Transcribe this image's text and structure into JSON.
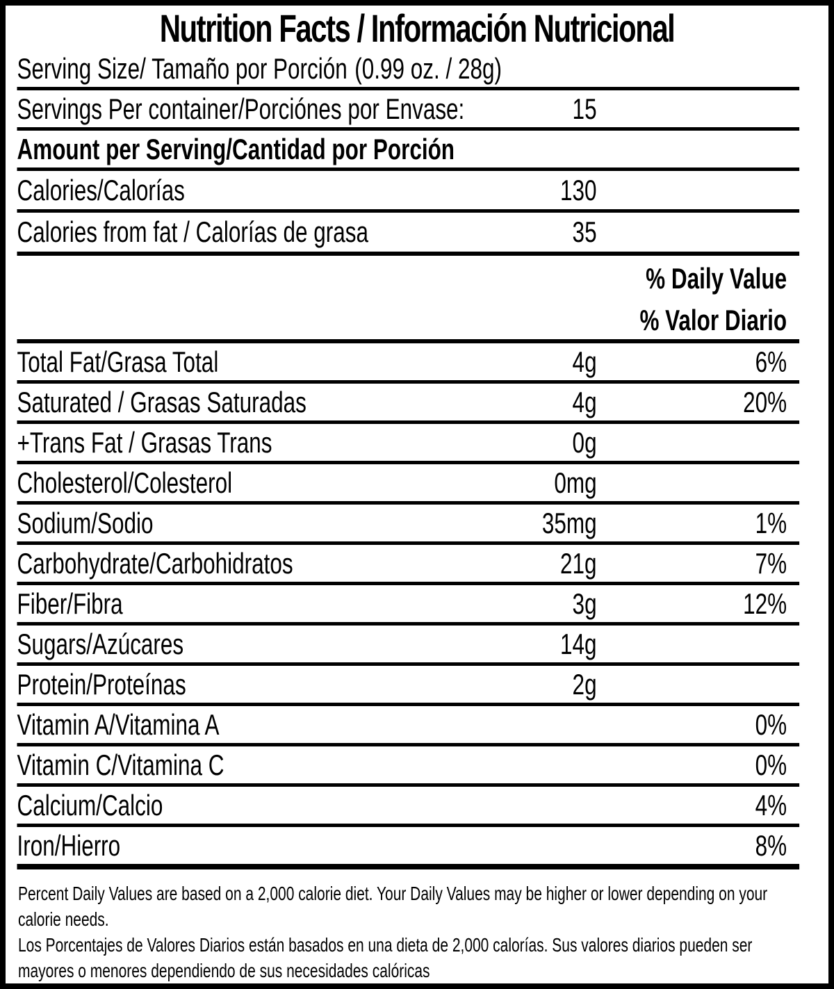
{
  "header": {
    "title": "Nutrition Facts / Información Nutricional"
  },
  "serving": {
    "size": {
      "label": "Serving Size/ Tamaño por Porción",
      "value": "(0.99 oz. / 28g)"
    },
    "per_container": {
      "label": "Servings Per container/Porciónes por Envase:",
      "value": "15"
    }
  },
  "sections": {
    "amount_per_serving": "Amount per Serving/Cantidad por Porción"
  },
  "calories": [
    {
      "label": "Calories/Calorías",
      "value": "130"
    },
    {
      "label": "Calories from fat / Calorías de grasa",
      "value": "35"
    }
  ],
  "daily_value_heading": {
    "en": "% Daily Value",
    "es": "% Valor Diario"
  },
  "nutrients": [
    {
      "label": "Total Fat/Grasa Total",
      "amount": "4g",
      "dv": "6%"
    },
    {
      "label": "Saturated / Grasas Saturadas",
      "amount": "4g",
      "dv": "20%"
    },
    {
      "label": "+Trans Fat / Grasas Trans",
      "amount": "0g",
      "dv": ""
    },
    {
      "label": "Cholesterol/Colesterol",
      "amount": "0mg",
      "dv": ""
    },
    {
      "label": "Sodium/Sodio",
      "amount": "35mg",
      "dv": "1%"
    },
    {
      "label": "Carbohydrate/Carbohidratos",
      "amount": "21g",
      "dv": "7%"
    },
    {
      "label": "Fiber/Fibra",
      "amount": "3g",
      "dv": "12%"
    },
    {
      "label": "Sugars/Azúcares",
      "amount": "14g",
      "dv": ""
    },
    {
      "label": "Protein/Proteínas",
      "amount": "2g",
      "dv": ""
    },
    {
      "label": "Vitamin A/Vitamina A",
      "amount": "",
      "dv": "0%"
    },
    {
      "label": "Vitamin C/Vitamina C",
      "amount": "",
      "dv": "0%"
    },
    {
      "label": "Calcium/Calcio",
      "amount": "",
      "dv": "4%"
    },
    {
      "label": "Iron/Hierro",
      "amount": "",
      "dv": "8%"
    }
  ],
  "footnote": {
    "en": "Percent Daily Values are based on a 2,000 calorie diet. Your Daily Values may be higher or lower depending on your calorie needs.",
    "es": "Los Porcentajes de Valores Diarios están basados en una dieta de 2,000 calorías. Sus valores diarios pueden ser mayores o menores dependiendo de sus necesidades calóricas"
  },
  "colors": {
    "ink": "#000000",
    "background": "#ffffff"
  }
}
